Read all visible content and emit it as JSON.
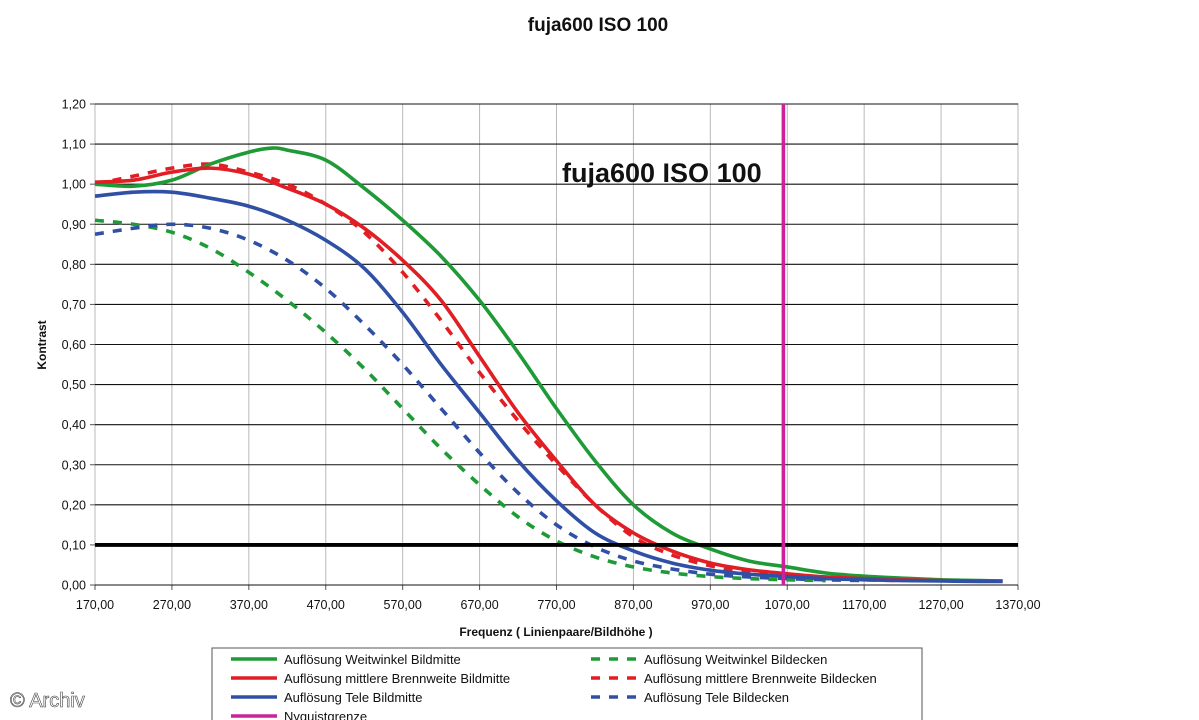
{
  "chart_data": {
    "type": "line",
    "title": "fuja600   ISO 100",
    "annotation": "fuja600   ISO 100",
    "xlabel": "Frequenz ( Linienpaare/Bildhöhe )",
    "ylabel": "Kontrast",
    "xlim": [
      170,
      1370
    ],
    "ylim": [
      0,
      1.2
    ],
    "x_ticks": [
      "170,00",
      "270,00",
      "370,00",
      "470,00",
      "570,00",
      "670,00",
      "770,00",
      "870,00",
      "970,00",
      "1070,00",
      "1170,00",
      "1270,00",
      "1370,00"
    ],
    "y_ticks": [
      "0,00",
      "0,10",
      "0,20",
      "0,30",
      "0,40",
      "0,50",
      "0,60",
      "0,70",
      "0,80",
      "0,90",
      "1,00",
      "1,10",
      "1,20"
    ],
    "grid": true,
    "reference_line": {
      "y": 0.1,
      "color": "#000000"
    },
    "nyquist_line": {
      "x": 1065,
      "color": "#cc2299"
    },
    "series": [
      {
        "name": "Auflösung Weitwinkel Bildmitte",
        "color": "#1e9a36",
        "dash": false,
        "x": [
          170,
          220,
          270,
          320,
          370,
          400,
          420,
          470,
          520,
          570,
          620,
          670,
          720,
          770,
          820,
          870,
          920,
          970,
          1020,
          1070,
          1120,
          1170,
          1220,
          1270,
          1320,
          1350
        ],
        "y": [
          1.0,
          0.995,
          1.01,
          1.05,
          1.08,
          1.09,
          1.085,
          1.06,
          0.99,
          0.91,
          0.82,
          0.71,
          0.58,
          0.44,
          0.31,
          0.2,
          0.13,
          0.09,
          0.06,
          0.045,
          0.03,
          0.022,
          0.017,
          0.013,
          0.011,
          0.01
        ]
      },
      {
        "name": "Auflösung mittlere Brennweite Bildmitte",
        "color": "#e01e24",
        "dash": false,
        "x": [
          170,
          220,
          270,
          320,
          370,
          420,
          470,
          520,
          570,
          620,
          670,
          720,
          770,
          820,
          870,
          920,
          970,
          1020,
          1070,
          1120,
          1170,
          1220,
          1270,
          1320,
          1350
        ],
        "y": [
          1.005,
          1.01,
          1.03,
          1.04,
          1.025,
          0.99,
          0.95,
          0.89,
          0.81,
          0.71,
          0.57,
          0.43,
          0.31,
          0.2,
          0.13,
          0.085,
          0.055,
          0.038,
          0.028,
          0.02,
          0.016,
          0.013,
          0.011,
          0.01,
          0.01
        ]
      },
      {
        "name": "Auflösung Tele Bildmitte",
        "color": "#3050a6",
        "dash": false,
        "x": [
          170,
          220,
          270,
          320,
          370,
          420,
          470,
          520,
          570,
          620,
          670,
          720,
          770,
          820,
          870,
          920,
          970,
          1020,
          1070,
          1120,
          1170,
          1220,
          1270,
          1320,
          1350
        ],
        "y": [
          0.97,
          0.98,
          0.98,
          0.965,
          0.945,
          0.91,
          0.86,
          0.79,
          0.68,
          0.55,
          0.43,
          0.31,
          0.21,
          0.13,
          0.085,
          0.055,
          0.037,
          0.027,
          0.021,
          0.016,
          0.013,
          0.011,
          0.01,
          0.009,
          0.009
        ]
      },
      {
        "name": "Auflösung Weitwinkel Bildecken",
        "color": "#1e9a36",
        "dash": true,
        "x": [
          170,
          220,
          270,
          320,
          370,
          420,
          470,
          520,
          570,
          620,
          670,
          720,
          770,
          820,
          870,
          920,
          970,
          1020,
          1070,
          1120
        ],
        "y": [
          0.91,
          0.9,
          0.88,
          0.84,
          0.78,
          0.71,
          0.63,
          0.54,
          0.44,
          0.34,
          0.25,
          0.17,
          0.11,
          0.07,
          0.045,
          0.03,
          0.021,
          0.016,
          0.013,
          0.011
        ]
      },
      {
        "name": "Auflösung mittlere Brennweite Bildecken",
        "color": "#e01e24",
        "dash": true,
        "x": [
          170,
          220,
          270,
          320,
          370,
          420,
          470,
          520,
          570,
          620,
          670,
          720,
          770,
          820,
          870,
          920,
          970,
          1020,
          1070,
          1120,
          1170,
          1220
        ],
        "y": [
          1.0,
          1.02,
          1.04,
          1.05,
          1.03,
          1.0,
          0.95,
          0.88,
          0.78,
          0.66,
          0.53,
          0.41,
          0.3,
          0.2,
          0.12,
          0.075,
          0.048,
          0.032,
          0.023,
          0.017,
          0.013,
          0.011
        ]
      },
      {
        "name": "Auflösung Tele Bildecken",
        "color": "#3050a6",
        "dash": true,
        "x": [
          170,
          220,
          270,
          320,
          370,
          420,
          470,
          520,
          570,
          620,
          670,
          720,
          770,
          820,
          870,
          920,
          970,
          1020,
          1070,
          1120,
          1170
        ],
        "y": [
          0.875,
          0.89,
          0.9,
          0.89,
          0.86,
          0.81,
          0.74,
          0.65,
          0.55,
          0.44,
          0.33,
          0.23,
          0.15,
          0.095,
          0.06,
          0.04,
          0.027,
          0.02,
          0.016,
          0.013,
          0.011
        ]
      }
    ],
    "legend": {
      "position": "bottom",
      "entries": [
        {
          "label": "Auflösung Weitwinkel Bildmitte",
          "color": "#1e9a36",
          "dash": false
        },
        {
          "label": "Auflösung Weitwinkel Bildecken",
          "color": "#1e9a36",
          "dash": true
        },
        {
          "label": "Auflösung mittlere Brennweite Bildmitte",
          "color": "#e01e24",
          "dash": false
        },
        {
          "label": "Auflösung mittlere Brennweite Bildecken",
          "color": "#e01e24",
          "dash": true
        },
        {
          "label": "Auflösung Tele Bildmitte",
          "color": "#3050a6",
          "dash": false
        },
        {
          "label": "Auflösung Tele Bildecken",
          "color": "#3050a6",
          "dash": true
        },
        {
          "label": "Nyquistgrenze",
          "color": "#cc2299",
          "dash": false
        }
      ]
    }
  },
  "copyright": "© Archiv"
}
